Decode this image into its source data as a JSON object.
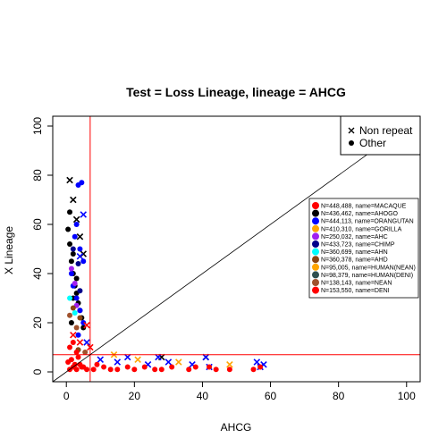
{
  "chart_data": {
    "type": "scatter",
    "title": "Test = Loss Lineage, lineage = AHCG",
    "xlabel": "AHCG",
    "ylabel": "X Lineage",
    "xlim": [
      -4,
      104
    ],
    "ylim": [
      -4,
      104
    ],
    "x_ticks": [
      0,
      20,
      40,
      60,
      80,
      100
    ],
    "y_ticks": [
      0,
      20,
      40,
      60,
      80,
      100
    ],
    "grid": false,
    "reference_lines": {
      "vertical_x": 7,
      "horizontal_y": 7,
      "diagonal": "y = x",
      "color": "#ff0000"
    },
    "marker_legend": {
      "placement": "top-right",
      "entries": [
        {
          "label": "Non repeat",
          "marker": "cross"
        },
        {
          "label": "Other",
          "marker": "filled-circle"
        }
      ]
    },
    "series_legend": {
      "placement": "right",
      "entries": [
        {
          "label": "N=448,488, name=MACAQUE",
          "color": "#ff0000"
        },
        {
          "label": "N=436,462, name=AHOGO",
          "color": "#000000"
        },
        {
          "label": "N=444,113, name=ORANGUTAN",
          "color": "#0000ff"
        },
        {
          "label": "N=410,310, name=GORILLA",
          "color": "#ffa500"
        },
        {
          "label": "N=250,032, name=AHC",
          "color": "#a020f0"
        },
        {
          "label": "N=433,723, name=CHIMP",
          "color": "#00008b"
        },
        {
          "label": "N=360,699, name=AHN",
          "color": "#00ffff"
        },
        {
          "label": "N=360,378, name=AHD",
          "color": "#8b4513"
        },
        {
          "label": "N=95,005, name=HUMAN(NEAN)",
          "color": "#ffa500"
        },
        {
          "label": "N=98,379, name=HUMAN(DENI)",
          "color": "#2f4f4f"
        },
        {
          "label": "N=138,143, name=NEAN",
          "color": "#a0522d"
        },
        {
          "label": "N=153,550, name=DENI",
          "color": "#ff0000"
        }
      ]
    },
    "series": [
      {
        "color": "#000000",
        "marker": "cross",
        "x": [
          1,
          2,
          3,
          4,
          5,
          28,
          41
        ],
        "y": [
          78,
          70,
          62,
          55,
          48,
          6,
          6
        ]
      },
      {
        "color": "#000000",
        "marker": "circle",
        "x": [
          0.5,
          1,
          1.5,
          2,
          2.5,
          3,
          3.5,
          4,
          4.5,
          5,
          1,
          2,
          3,
          2,
          1.5
        ],
        "y": [
          58,
          52,
          45,
          40,
          35,
          32,
          28,
          25,
          22,
          18,
          65,
          48,
          38,
          30,
          20
        ]
      },
      {
        "color": "#0000ff",
        "marker": "circle",
        "x": [
          3.5,
          4.5,
          3,
          2.5,
          4,
          5,
          1.5,
          2,
          3,
          4,
          5,
          3.5
        ],
        "y": [
          76,
          77,
          60,
          55,
          50,
          45,
          40,
          35,
          30,
          25,
          20,
          15
        ]
      },
      {
        "color": "#0000ff",
        "marker": "cross",
        "x": [
          5,
          4,
          6,
          10,
          15,
          18,
          24,
          27,
          30,
          37,
          41,
          42,
          56,
          57,
          58
        ],
        "y": [
          64,
          47,
          12,
          5,
          4,
          6,
          3,
          6,
          4,
          3,
          6,
          2,
          4,
          2,
          3
        ]
      },
      {
        "color": "#ff0000",
        "marker": "cross",
        "x": [
          6,
          7,
          2,
          4
        ],
        "y": [
          19,
          10,
          15,
          12
        ]
      },
      {
        "color": "#ffa500",
        "marker": "cross",
        "x": [
          14,
          21,
          33,
          48
        ],
        "y": [
          7,
          5,
          4,
          3
        ]
      },
      {
        "color": "#a020f0",
        "marker": "circle",
        "x": [
          1.5,
          2.5,
          3
        ],
        "y": [
          42,
          36,
          27
        ]
      },
      {
        "color": "#00008b",
        "marker": "circle",
        "x": [
          2,
          3.5,
          4
        ],
        "y": [
          50,
          44,
          33
        ]
      },
      {
        "color": "#00ffff",
        "marker": "circle",
        "x": [
          1,
          2.5
        ],
        "y": [
          30,
          24
        ]
      },
      {
        "color": "#8b4513",
        "marker": "circle",
        "x": [
          2,
          4,
          3.5
        ],
        "y": [
          26,
          22,
          9
        ]
      },
      {
        "color": "#a0522d",
        "marker": "circle",
        "x": [
          1,
          3,
          5.5
        ],
        "y": [
          23,
          18,
          8
        ]
      },
      {
        "color": "#ff0000",
        "marker": "circle",
        "x": [
          1,
          2,
          3,
          4,
          5,
          6,
          0.5,
          1.5,
          2.5,
          3.5,
          4.5,
          1,
          2,
          3,
          8,
          11,
          15,
          20,
          26,
          31,
          36,
          42,
          48,
          55,
          57,
          9,
          13,
          18,
          23,
          28,
          38,
          44
        ],
        "y": [
          1,
          2,
          1,
          3,
          2,
          1,
          4,
          5,
          3,
          6,
          2,
          10,
          12,
          8,
          1,
          2,
          1,
          1,
          1,
          2,
          1,
          2,
          1,
          1,
          2,
          3,
          1,
          2,
          2,
          1,
          2,
          1
        ]
      }
    ]
  }
}
